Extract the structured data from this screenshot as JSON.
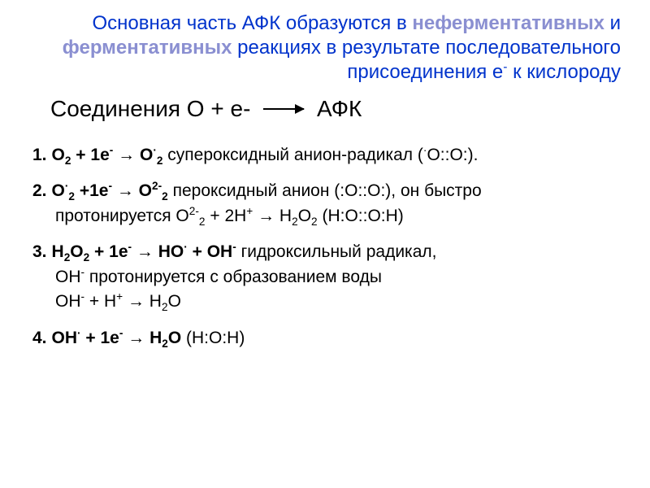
{
  "title": {
    "part1": "Основная часть АФК образуются в ",
    "bold1": "неферментативных",
    "mid": " и ",
    "bold2": "ферментативных",
    "part2": " реакциях в результате последовательного присоединения  е",
    "sup": "-",
    "part3": " к кислороду"
  },
  "subtitle_left": "Соединения О + е-",
  "subtitle_right": "АФК",
  "colors": {
    "blue": "#0033cc",
    "grayblue": "#8a8fd1",
    "text": "#000000",
    "bg": "#ffffff"
  },
  "reactions": [
    {
      "num": "1.",
      "lead_html": "O<sub>2</sub> + 1e<sup>-</sup> → O<sup>·</sup><sub>2</sub>",
      "tail_html": " супероксидный анион-радикал (<sup>·</sup>O::O:)."
    },
    {
      "num": "2.",
      "lead_html": "O<sup>·</sup><sub>2</sub> +1e<sup>-</sup> → O<sup>2-</sup><sub>2</sub>",
      "tail_html": " пероксидный анион (:O::O:), он быстро",
      "cont_html": "протонируется O<sup>2-</sup><sub>2</sub> + 2H<sup>+</sup> → H<sub>2</sub>O<sub>2</sub> (H:O::O:H)"
    },
    {
      "num": "3.",
      "lead_html": "H<sub>2</sub>O<sub>2</sub> + 1e<sup>-</sup> → HO<sup>·</sup> + OH<sup>-</sup>",
      "tail_html": " гидроксильный радикал,",
      "cont_html": "OH<sup>-</sup> протонируется с образованием воды<br>OH<sup>-</sup> + H<sup>+</sup> → H<sub>2</sub>O"
    },
    {
      "num": "4.",
      "lead_html": "OH<sup>·</sup> + 1e<sup>-</sup> → H<sub>2</sub>O",
      "tail_html": " (H:O:H)"
    }
  ]
}
